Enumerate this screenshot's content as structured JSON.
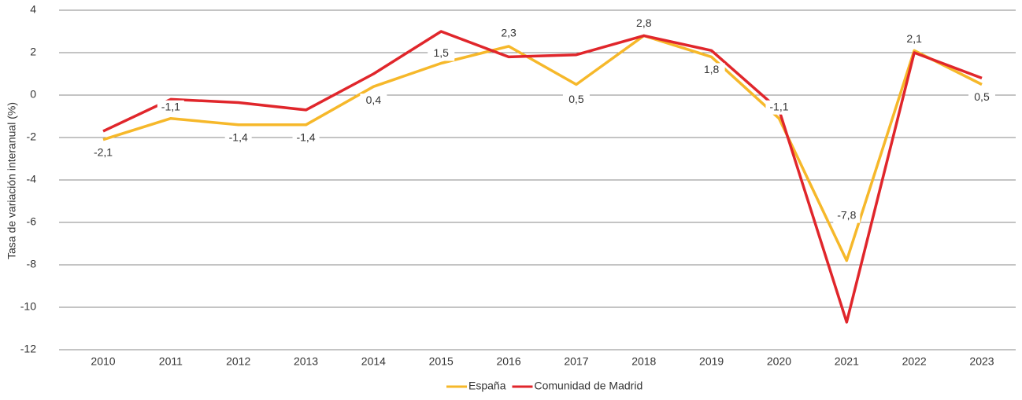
{
  "chart_data": {
    "type": "line",
    "y_label": "Tasa de variación interanual (%)",
    "categories": [
      "2010",
      "2011",
      "2012",
      "2013",
      "2014",
      "2015",
      "2016",
      "2017",
      "2018",
      "2019",
      "2020",
      "2021",
      "2022",
      "2023"
    ],
    "series": [
      {
        "name": "España",
        "color": "#f6b82a",
        "values": [
          -2.1,
          -1.1,
          -1.4,
          -1.4,
          0.4,
          1.5,
          2.3,
          0.5,
          2.8,
          1.8,
          -1.1,
          -7.8,
          2.1,
          0.5
        ],
        "value_labels": [
          "-2,1",
          "-1,1",
          "-1,4",
          "-1,4",
          "0,4",
          "1,5",
          "2,3",
          "0,5",
          "2,8",
          "1,8",
          "-1,1",
          "-7,8",
          "2,1",
          "0,5"
        ]
      },
      {
        "name": "Comunidad de Madrid",
        "color": "#e0262b",
        "values": [
          -1.7,
          -0.2,
          -0.35,
          -0.7,
          1.0,
          3.0,
          1.8,
          1.9,
          2.8,
          2.1,
          -0.7,
          -10.7,
          2.0,
          0.8
        ]
      }
    ],
    "ylim": [
      -12,
      4
    ],
    "yticks": [
      -12,
      -10,
      -8,
      -6,
      -4,
      -2,
      0,
      2,
      4
    ],
    "grid": true,
    "legend": "bottom"
  }
}
